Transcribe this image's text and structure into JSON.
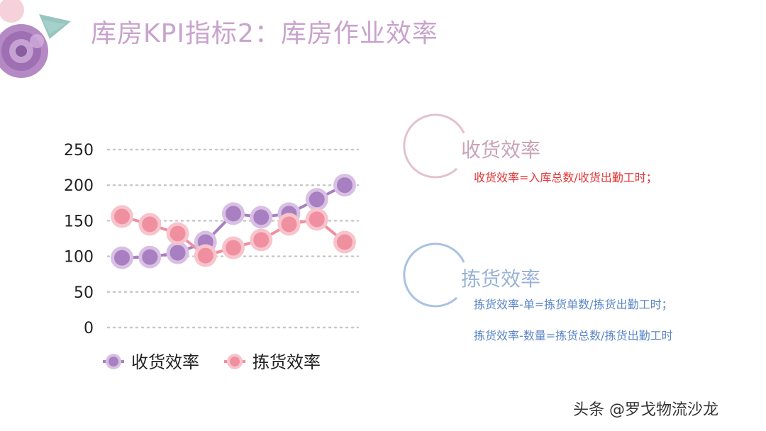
{
  "page": {
    "title": "库房KPI指标2：库房作业效率",
    "watermark": "头条 @罗戈物流沙龙"
  },
  "sections": [
    {
      "title": "收货效率",
      "formulas": [
        "收货效率=入库总数/收货出勤工时；"
      ]
    },
    {
      "title": "拣货效率",
      "formulas": [
        "拣货效率-单=拣货单数/拣货出勤工时；",
        "拣货效率-数量=拣货总数/拣货出勤工时"
      ]
    }
  ],
  "colors": {
    "receive": "#a87fc0",
    "pick": "#f08fa0",
    "receive_halo": "#d8c0e4",
    "pick_halo": "#f8c4cc",
    "grid": "#c8c8c8",
    "title": "#c8a3cc"
  },
  "chart_data": {
    "type": "line",
    "x": [
      1,
      2,
      3,
      4,
      5,
      6,
      7,
      8,
      9
    ],
    "ylim": [
      0,
      250
    ],
    "yticks": [
      0,
      50,
      100,
      150,
      200,
      250
    ],
    "grid": "horizontal-dotted",
    "legend": "bottom",
    "series": [
      {
        "name": "收货效率",
        "values": [
          98,
          99,
          105,
          120,
          160,
          155,
          160,
          180,
          200
        ]
      },
      {
        "name": "拣货效率",
        "values": [
          156,
          145,
          132,
          101,
          112,
          123,
          145,
          152,
          120
        ]
      }
    ]
  }
}
